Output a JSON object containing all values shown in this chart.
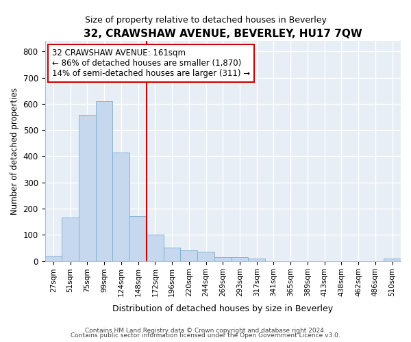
{
  "title": "32, CRAWSHAW AVENUE, BEVERLEY, HU17 7QW",
  "subtitle": "Size of property relative to detached houses in Beverley",
  "xlabel": "Distribution of detached houses by size in Beverley",
  "ylabel": "Number of detached properties",
  "bar_color": "#c5d8ee",
  "bar_edge_color": "#7aadd4",
  "bg_color": "#e8eef6",
  "grid_color": "#ffffff",
  "fig_bg_color": "#ffffff",
  "categories": [
    "27sqm",
    "51sqm",
    "75sqm",
    "99sqm",
    "124sqm",
    "148sqm",
    "172sqm",
    "196sqm",
    "220sqm",
    "244sqm",
    "269sqm",
    "293sqm",
    "317sqm",
    "341sqm",
    "365sqm",
    "389sqm",
    "413sqm",
    "438sqm",
    "462sqm",
    "486sqm",
    "510sqm"
  ],
  "values": [
    20,
    165,
    558,
    610,
    415,
    170,
    100,
    50,
    40,
    35,
    15,
    15,
    10,
    0,
    0,
    0,
    0,
    0,
    0,
    0,
    10
  ],
  "ylim": [
    0,
    840
  ],
  "yticks": [
    0,
    100,
    200,
    300,
    400,
    500,
    600,
    700,
    800
  ],
  "property_line_x": 5.5,
  "annotation_title": "32 CRAWSHAW AVENUE: 161sqm",
  "annotation_line1": "← 86% of detached houses are smaller (1,870)",
  "annotation_line2": "14% of semi-detached houses are larger (311) →",
  "annotation_box_color": "#ffffff",
  "annotation_border_color": "#cc0000",
  "vline_color": "#cc0000",
  "footer1": "Contains HM Land Registry data © Crown copyright and database right 2024.",
  "footer2": "Contains public sector information licensed under the Open Government Licence v3.0."
}
